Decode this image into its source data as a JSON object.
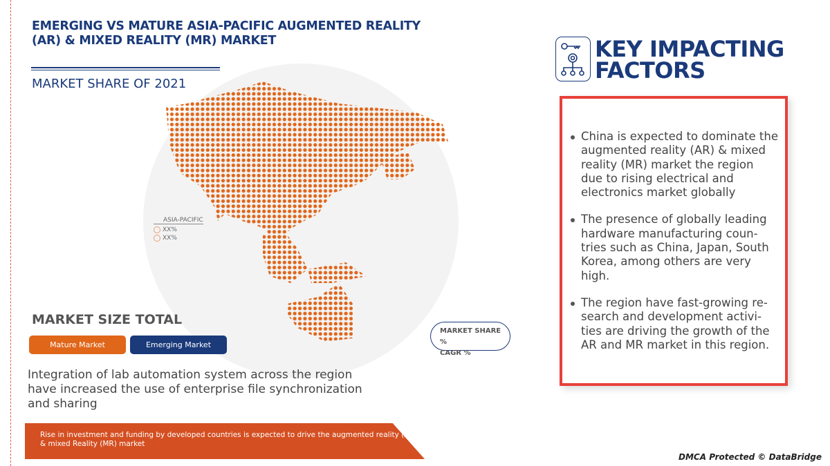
{
  "title": "EMERGING VS MATURE ASIA-PACIFIC AUGMENTED REALITY (AR) & MIXED REALITY (MR) MARKET",
  "subtitle": "MARKET SHARE OF 2021",
  "legend": {
    "region": "ASIA-PACIFIC",
    "items": [
      "XX%",
      "XX%"
    ]
  },
  "market_size_title": "MARKET SIZE TOTAL",
  "buttons": {
    "mature": "Mature Market",
    "emerging": "Emerging Market"
  },
  "pill": {
    "line1": "MARKET SHARE %",
    "line2": "CAGR %"
  },
  "paragraph": "Integration of lab automation system across the region have increased the use of enterprise file synchronization and sharing",
  "banner": "Rise in investment and funding by developed countries is expected to drive the augmented reality (AR) & mixed Reality (MR) market",
  "key_factors": {
    "title_line1": "KEY IMPACTING",
    "title_line2": "FACTORS",
    "icon": "key-gear-network-icon",
    "bullets": [
      "China is expected to dominate the augmented reality (AR) & mixed reality (MR) market the region due to rising electrical and electronics market globally",
      "The presence of globally leading hardware manufacturing coun-tries such as China, Japan, South Korea, among others are very high.",
      "The region have fast-growing re-search and development activi-ties are driving the growth of the AR and MR market in this region."
    ]
  },
  "watermark": "DMCA Protected © DataBridge",
  "colors": {
    "navy": "#1a3a7a",
    "orange": "#e0661a",
    "red": "#e8403a"
  }
}
